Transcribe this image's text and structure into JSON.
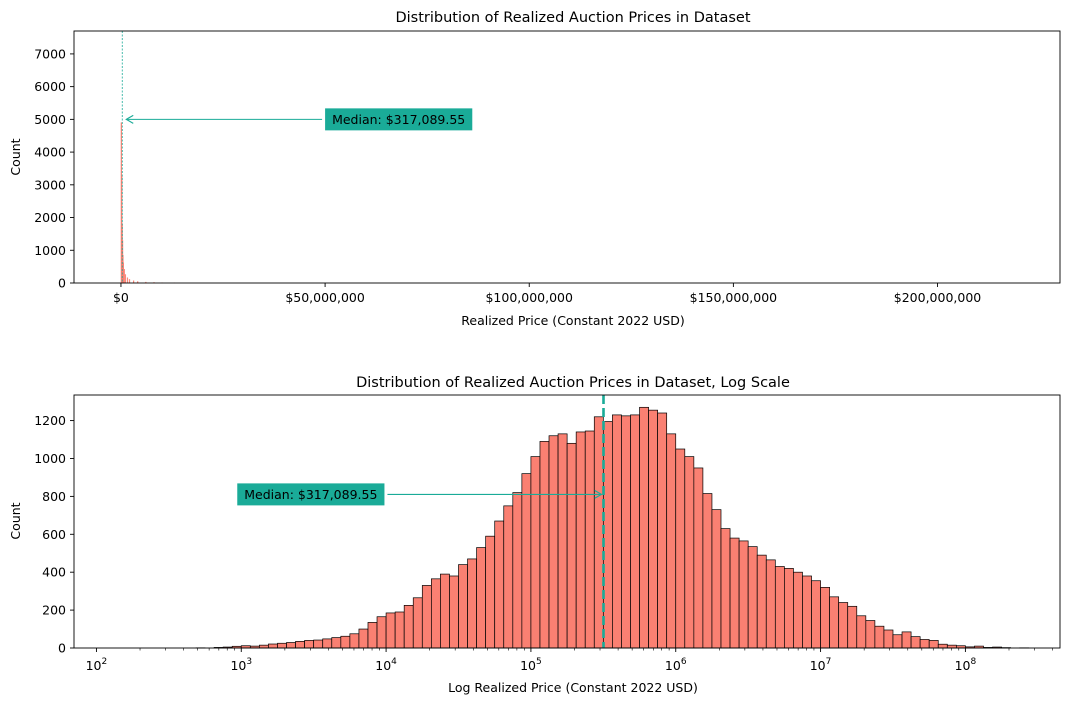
{
  "colors": {
    "bar_fill": "#fa8072",
    "bar_edge": "#000000",
    "median_line": "#1aab98",
    "annotation_box": "#1aab98"
  },
  "chart_data": [
    {
      "type": "bar",
      "title": "Distribution of Realized Auction Prices in Dataset",
      "xlabel": "Realized Price (Constant 2022 USD)",
      "ylabel": "Count",
      "xlim": [
        -11500000,
        230000000
      ],
      "ylim": [
        0,
        7700
      ],
      "x_ticks": [
        0,
        50000000,
        100000000,
        150000000,
        200000000
      ],
      "x_tick_labels": [
        "$0",
        "$50,000,000",
        "$100,000,000",
        "$150,000,000",
        "$200,000,000"
      ],
      "y_ticks": [
        0,
        1000,
        2000,
        3000,
        4000,
        5000,
        6000,
        7000
      ],
      "y_tick_labels": [
        "0",
        "1000",
        "2000",
        "3000",
        "4000",
        "5000",
        "6000",
        "7000"
      ],
      "bin_width": 100000,
      "bins_x_start": [
        0,
        100000,
        200000,
        300000,
        400000,
        500000,
        700000,
        1000000,
        1500000,
        2000000,
        3000000,
        4000000,
        6000000,
        8000000,
        10000000,
        13000000
      ],
      "values": [
        4900,
        3300,
        1800,
        1300,
        850,
        620,
        420,
        260,
        160,
        110,
        70,
        45,
        28,
        18,
        10,
        6
      ],
      "median": 317089.55,
      "annotation": {
        "text": "Median: $317,089.55",
        "xy": [
          317089.55,
          5000
        ],
        "text_xy": [
          50000000,
          5000
        ]
      },
      "grid": false,
      "legend": "none"
    },
    {
      "type": "bar",
      "title": "Distribution of Realized Auction Prices in Dataset, Log Scale",
      "xlabel": "Log Realized Price (Constant 2022 USD)",
      "ylabel": "Count",
      "x_scale": "log",
      "xlim": [
        70,
        450000000
      ],
      "ylim": [
        0,
        1335
      ],
      "x_ticks": [
        100,
        1000,
        10000,
        100000,
        1000000,
        10000000,
        100000000
      ],
      "x_tick_labels": [
        {
          "base": "10",
          "exp": "2"
        },
        {
          "base": "10",
          "exp": "3"
        },
        {
          "base": "10",
          "exp": "4"
        },
        {
          "base": "10",
          "exp": "5"
        },
        {
          "base": "10",
          "exp": "6"
        },
        {
          "base": "10",
          "exp": "7"
        },
        {
          "base": "10",
          "exp": "8"
        }
      ],
      "y_ticks": [
        0,
        200,
        400,
        600,
        800,
        1000,
        1200
      ],
      "y_tick_labels": [
        "0",
        "200",
        "400",
        "600",
        "800",
        "1000",
        "1200"
      ],
      "log10_start": 2.0,
      "log10_bin_width": 0.0625,
      "values": [
        0,
        0,
        0,
        0,
        0,
        0,
        0,
        0,
        0,
        0,
        0,
        1,
        0,
        3,
        5,
        9,
        12,
        10,
        15,
        21,
        25,
        29,
        35,
        40,
        42,
        48,
        55,
        62,
        75,
        100,
        135,
        165,
        185,
        190,
        225,
        265,
        330,
        365,
        390,
        380,
        440,
        470,
        530,
        590,
        670,
        750,
        820,
        920,
        1010,
        1090,
        1120,
        1130,
        1080,
        1140,
        1145,
        1220,
        1195,
        1230,
        1225,
        1230,
        1270,
        1255,
        1240,
        1130,
        1050,
        1010,
        950,
        815,
        730,
        630,
        580,
        565,
        535,
        490,
        465,
        430,
        420,
        400,
        380,
        355,
        320,
        270,
        240,
        220,
        170,
        145,
        115,
        95,
        70,
        85,
        60,
        45,
        40,
        20,
        15,
        12,
        6,
        10,
        3,
        5,
        2,
        0,
        1,
        0,
        0,
        0,
        0
      ],
      "median": 317089.55,
      "annotation": {
        "text": "Median: $317,089.55",
        "xy": [
          317089.55,
          800
        ],
        "text_xy": [
          1000,
          800
        ]
      },
      "grid": false,
      "legend": "none"
    }
  ]
}
